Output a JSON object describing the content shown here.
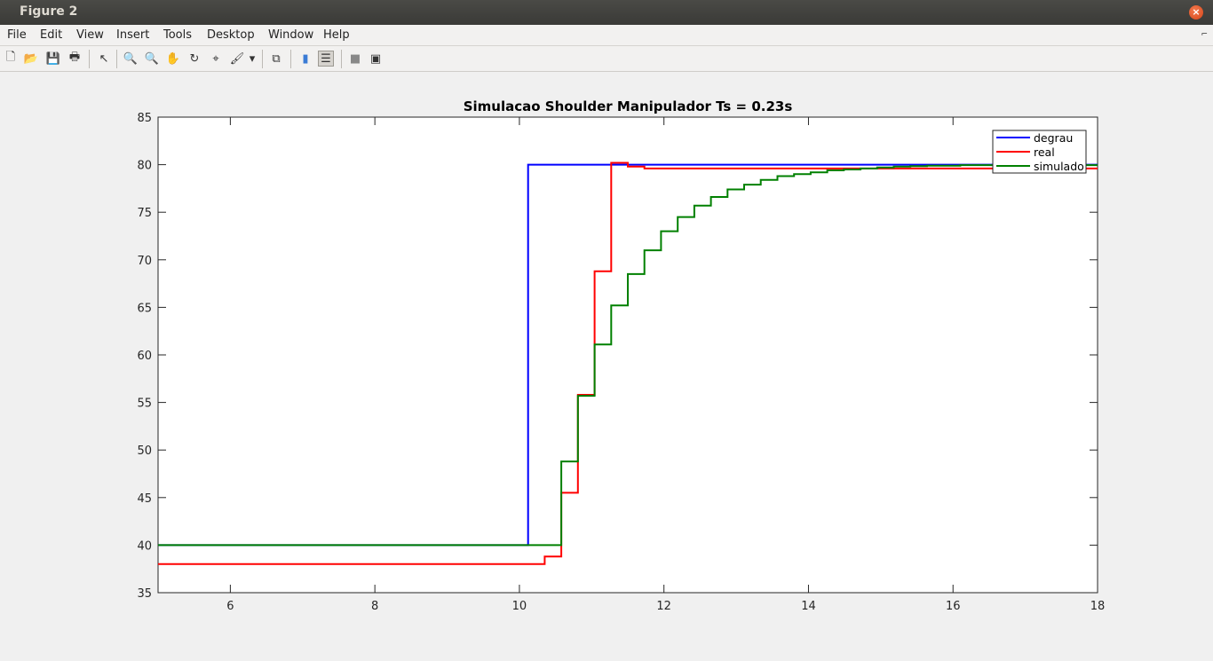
{
  "window": {
    "title": "Figure 2",
    "close_icon": "close-icon"
  },
  "menu": [
    {
      "label": "File"
    },
    {
      "label": "Edit"
    },
    {
      "label": "View"
    },
    {
      "label": "Insert"
    },
    {
      "label": "Tools"
    },
    {
      "label": "Desktop"
    },
    {
      "label": "Window"
    },
    {
      "label": "Help"
    }
  ],
  "toolbar": [
    {
      "name": "new-figure-icon",
      "glyph": "🗋"
    },
    {
      "name": "open-file-icon",
      "glyph": "📂"
    },
    {
      "name": "save-icon",
      "glyph": "💾"
    },
    {
      "name": "print-icon",
      "glyph": "🖶"
    },
    {
      "name": "edit-plot-arrow-icon",
      "glyph": "↖"
    },
    {
      "name": "zoom-in-icon",
      "glyph": "🔍"
    },
    {
      "name": "zoom-out-icon",
      "glyph": "🔍"
    },
    {
      "name": "pan-hand-icon",
      "glyph": "✋"
    },
    {
      "name": "rotate-3d-icon",
      "glyph": "↻"
    },
    {
      "name": "data-cursor-icon",
      "glyph": "⌖"
    },
    {
      "name": "brush-icon",
      "glyph": "🖌"
    },
    {
      "name": "brush-dropdown-icon",
      "glyph": "▾"
    },
    {
      "name": "link-plot-icon",
      "glyph": "⧉"
    },
    {
      "name": "insert-colorbar-icon",
      "glyph": "▮"
    },
    {
      "name": "insert-legend-icon",
      "glyph": "☰"
    },
    {
      "name": "hide-plot-tools-icon",
      "glyph": "■"
    },
    {
      "name": "show-plot-tools-icon",
      "glyph": "▣"
    }
  ],
  "chart_data": {
    "type": "line",
    "title": "Simulacao Shoulder Manipulador Ts = 0.23s",
    "xlabel": "",
    "ylabel": "",
    "xlim": [
      5,
      18
    ],
    "ylim": [
      35,
      85
    ],
    "xticks": [
      6,
      8,
      10,
      12,
      14,
      16,
      18
    ],
    "yticks": [
      35,
      40,
      45,
      50,
      55,
      60,
      65,
      70,
      75,
      80,
      85
    ],
    "grid": false,
    "legend_position": "top-right",
    "series": [
      {
        "name": "degrau",
        "color": "#0000ff",
        "step": true,
        "points": [
          [
            5,
            40
          ],
          [
            10.12,
            40
          ],
          [
            10.12,
            80
          ],
          [
            18,
            80
          ]
        ]
      },
      {
        "name": "real",
        "color": "#ff0000",
        "step": true,
        "points": [
          [
            5,
            38
          ],
          [
            10.35,
            38
          ],
          [
            10.35,
            38.8
          ],
          [
            10.58,
            38.8
          ],
          [
            10.58,
            45.5
          ],
          [
            10.81,
            45.5
          ],
          [
            10.81,
            55.8
          ],
          [
            11.04,
            55.8
          ],
          [
            11.04,
            68.8
          ],
          [
            11.27,
            68.8
          ],
          [
            11.27,
            80.2
          ],
          [
            11.5,
            80.2
          ],
          [
            11.5,
            79.8
          ],
          [
            11.73,
            79.8
          ],
          [
            11.73,
            79.6
          ],
          [
            18,
            79.6
          ]
        ]
      },
      {
        "name": "simulado",
        "color": "#008000",
        "step": true,
        "points": [
          [
            5,
            40
          ],
          [
            10.58,
            40
          ],
          [
            10.58,
            48.8
          ],
          [
            10.81,
            48.8
          ],
          [
            10.81,
            55.7
          ],
          [
            11.04,
            55.7
          ],
          [
            11.04,
            61.1
          ],
          [
            11.27,
            61.1
          ],
          [
            11.27,
            65.2
          ],
          [
            11.5,
            65.2
          ],
          [
            11.5,
            68.5
          ],
          [
            11.73,
            68.5
          ],
          [
            11.73,
            71.0
          ],
          [
            11.96,
            71.0
          ],
          [
            11.96,
            73.0
          ],
          [
            12.19,
            73.0
          ],
          [
            12.19,
            74.5
          ],
          [
            12.42,
            74.5
          ],
          [
            12.42,
            75.7
          ],
          [
            12.65,
            75.7
          ],
          [
            12.65,
            76.6
          ],
          [
            12.88,
            76.6
          ],
          [
            12.88,
            77.4
          ],
          [
            13.11,
            77.4
          ],
          [
            13.11,
            77.9
          ],
          [
            13.34,
            77.9
          ],
          [
            13.34,
            78.4
          ],
          [
            13.57,
            78.4
          ],
          [
            13.57,
            78.8
          ],
          [
            13.8,
            78.8
          ],
          [
            13.8,
            79.0
          ],
          [
            14.03,
            79.0
          ],
          [
            14.03,
            79.2
          ],
          [
            14.26,
            79.2
          ],
          [
            14.26,
            79.4
          ],
          [
            14.49,
            79.4
          ],
          [
            14.49,
            79.5
          ],
          [
            14.72,
            79.5
          ],
          [
            14.72,
            79.6
          ],
          [
            14.95,
            79.6
          ],
          [
            14.95,
            79.7
          ],
          [
            15.18,
            79.7
          ],
          [
            15.18,
            79.8
          ],
          [
            15.41,
            79.8
          ],
          [
            15.41,
            79.85
          ],
          [
            15.64,
            79.85
          ],
          [
            15.64,
            79.9
          ],
          [
            16.1,
            79.9
          ],
          [
            16.1,
            79.95
          ],
          [
            18,
            79.95
          ]
        ]
      }
    ]
  }
}
